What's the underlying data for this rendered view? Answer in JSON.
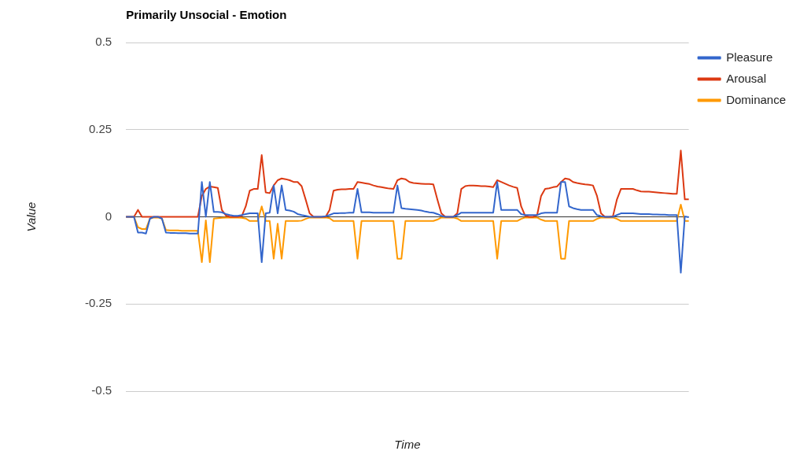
{
  "chart_data": {
    "type": "line",
    "title": "Primarily Unsocial - Emotion",
    "xlabel": "Time",
    "ylabel": "Value",
    "ylim": [
      -0.5,
      0.5
    ],
    "yticks": [
      0.5,
      0.25,
      0,
      -0.25,
      -0.5
    ],
    "tick_labels": "y",
    "grid": "y",
    "legend": "top right",
    "marker": "none",
    "line_style": "solid",
    "categories": [
      null,
      null,
      null,
      null,
      null,
      null,
      null,
      null,
      null,
      null,
      null,
      null,
      null,
      null,
      null,
      null,
      null,
      null,
      null,
      null,
      null,
      null,
      null,
      null,
      null,
      null,
      null,
      null,
      null,
      null,
      null,
      null,
      null,
      null,
      null,
      null,
      null,
      null,
      null,
      null,
      null,
      null,
      null,
      null,
      null,
      null,
      null,
      null,
      null,
      null,
      null,
      null,
      null,
      null,
      null,
      null,
      null,
      null,
      null,
      null,
      null,
      null,
      null,
      null,
      null,
      null,
      null,
      null,
      null,
      null,
      null,
      null,
      null,
      null,
      null,
      null,
      null,
      null,
      null,
      null,
      null,
      null,
      null,
      null,
      null,
      null,
      null,
      null,
      null,
      null,
      null,
      null,
      null,
      null,
      null,
      null,
      null,
      null,
      null,
      null,
      null,
      null,
      null,
      null,
      null,
      null,
      null,
      null,
      null,
      null,
      null,
      null,
      null,
      null,
      null,
      null,
      null,
      null,
      null,
      null,
      null,
      null,
      null,
      null,
      null,
      null,
      null,
      null,
      null,
      null,
      null,
      null,
      null,
      null,
      null,
      null,
      null,
      null,
      null,
      null,
      null,
      null
    ],
    "series": [
      {
        "name": "Pleasure",
        "color": "#3366cc",
        "values": [
          0,
          0,
          0,
          -0.045,
          -0.045,
          -0.048,
          -0.005,
          0,
          0,
          -0.005,
          -0.045,
          -0.046,
          -0.046,
          -0.047,
          -0.047,
          -0.047,
          -0.048,
          -0.048,
          -0.048,
          0.1,
          0,
          0.1,
          0.014,
          0.014,
          0.013,
          0.008,
          0.005,
          0.003,
          0.003,
          0.005,
          0.008,
          0.01,
          0.01,
          0.01,
          -0.13,
          0.01,
          0.012,
          0.09,
          0.01,
          0.09,
          0.02,
          0.018,
          0.015,
          0.008,
          0.005,
          0.003,
          0,
          0,
          0,
          0,
          0.002,
          0.005,
          0.01,
          0.01,
          0.011,
          0.011,
          0.012,
          0.012,
          0.08,
          0.013,
          0.013,
          0.013,
          0.012,
          0.012,
          0.012,
          0.012,
          0.012,
          0.012,
          0.09,
          0.025,
          0.023,
          0.022,
          0.021,
          0.02,
          0.018,
          0.015,
          0.013,
          0.012,
          0.008,
          0.003,
          0,
          0,
          0,
          0.005,
          0.012,
          0.012,
          0.012,
          0.012,
          0.012,
          0.012,
          0.012,
          0.012,
          0.012,
          0.1,
          0.02,
          0.02,
          0.02,
          0.02,
          0.02,
          0.008,
          0.005,
          0.005,
          0.005,
          0.005,
          0.01,
          0.012,
          0.012,
          0.012,
          0.012,
          0.1,
          0.1,
          0.03,
          0.025,
          0.022,
          0.02,
          0.02,
          0.02,
          0.02,
          0.005,
          0.002,
          0,
          0,
          0,
          0.005,
          0.01,
          0.01,
          0.01,
          0.01,
          0.009,
          0.008,
          0.008,
          0.008,
          0.007,
          0.007,
          0.006,
          0.006,
          0.005,
          0.005,
          0.005,
          -0.16,
          0.001,
          -0.001
        ]
      },
      {
        "name": "Arousal",
        "color": "#dc3912",
        "values": [
          0,
          0,
          0,
          0.02,
          0,
          0,
          0,
          0,
          0,
          0,
          0,
          0,
          0,
          0,
          0,
          0,
          0,
          0,
          0,
          0.06,
          0.08,
          0.087,
          0.085,
          0.083,
          0.02,
          0.004,
          0,
          0,
          0,
          0.002,
          0.03,
          0.075,
          0.08,
          0.08,
          0.177,
          0.07,
          0.068,
          0.09,
          0.105,
          0.11,
          0.108,
          0.105,
          0.1,
          0.1,
          0.088,
          0.05,
          0.01,
          0,
          0,
          0,
          0,
          0.02,
          0.075,
          0.078,
          0.079,
          0.079,
          0.08,
          0.08,
          0.1,
          0.098,
          0.096,
          0.094,
          0.09,
          0.087,
          0.085,
          0.083,
          0.081,
          0.08,
          0.105,
          0.11,
          0.108,
          0.1,
          0.097,
          0.096,
          0.095,
          0.094,
          0.094,
          0.093,
          0.05,
          0.01,
          0,
          0,
          0,
          0.01,
          0.08,
          0.088,
          0.09,
          0.09,
          0.089,
          0.088,
          0.088,
          0.087,
          0.085,
          0.105,
          0.1,
          0.095,
          0.09,
          0.086,
          0.083,
          0.03,
          0.003,
          0,
          0,
          0.005,
          0.06,
          0.08,
          0.082,
          0.085,
          0.087,
          0.1,
          0.11,
          0.108,
          0.1,
          0.097,
          0.095,
          0.093,
          0.092,
          0.09,
          0.06,
          0.01,
          0,
          0,
          0.002,
          0.05,
          0.08,
          0.08,
          0.08,
          0.08,
          0.076,
          0.073,
          0.072,
          0.072,
          0.071,
          0.07,
          0.069,
          0.068,
          0.067,
          0.066,
          0.066,
          0.19,
          0.05,
          0.05
        ]
      },
      {
        "name": "Dominance",
        "color": "#ff9900",
        "values": [
          0,
          0,
          0,
          -0.03,
          -0.035,
          -0.035,
          -0.005,
          -0.002,
          -0.002,
          -0.005,
          -0.038,
          -0.039,
          -0.039,
          -0.039,
          -0.04,
          -0.04,
          -0.04,
          -0.04,
          -0.04,
          -0.13,
          -0.01,
          -0.13,
          -0.005,
          -0.004,
          -0.003,
          -0.002,
          -0.002,
          -0.002,
          -0.002,
          -0.003,
          -0.005,
          -0.012,
          -0.012,
          -0.012,
          0.03,
          -0.012,
          -0.012,
          -0.12,
          -0.02,
          -0.12,
          -0.012,
          -0.012,
          -0.012,
          -0.012,
          -0.011,
          -0.006,
          -0.002,
          -0.002,
          -0.002,
          -0.002,
          -0.002,
          -0.004,
          -0.012,
          -0.012,
          -0.012,
          -0.012,
          -0.012,
          -0.012,
          -0.12,
          -0.012,
          -0.012,
          -0.012,
          -0.012,
          -0.012,
          -0.012,
          -0.012,
          -0.012,
          -0.012,
          -0.12,
          -0.12,
          -0.012,
          -0.012,
          -0.012,
          -0.012,
          -0.012,
          -0.012,
          -0.012,
          -0.012,
          -0.008,
          -0.002,
          -0.002,
          -0.002,
          -0.002,
          -0.005,
          -0.012,
          -0.012,
          -0.012,
          -0.012,
          -0.012,
          -0.012,
          -0.012,
          -0.012,
          -0.012,
          -0.12,
          -0.012,
          -0.012,
          -0.012,
          -0.012,
          -0.012,
          -0.006,
          -0.002,
          -0.002,
          -0.002,
          -0.002,
          -0.008,
          -0.012,
          -0.012,
          -0.012,
          -0.012,
          -0.12,
          -0.12,
          -0.012,
          -0.012,
          -0.012,
          -0.012,
          -0.012,
          -0.012,
          -0.012,
          -0.006,
          -0.002,
          -0.002,
          -0.002,
          -0.002,
          -0.006,
          -0.012,
          -0.012,
          -0.012,
          -0.012,
          -0.012,
          -0.012,
          -0.012,
          -0.012,
          -0.012,
          -0.012,
          -0.012,
          -0.012,
          -0.012,
          -0.012,
          -0.012,
          0.035,
          -0.012,
          -0.012
        ]
      }
    ]
  }
}
